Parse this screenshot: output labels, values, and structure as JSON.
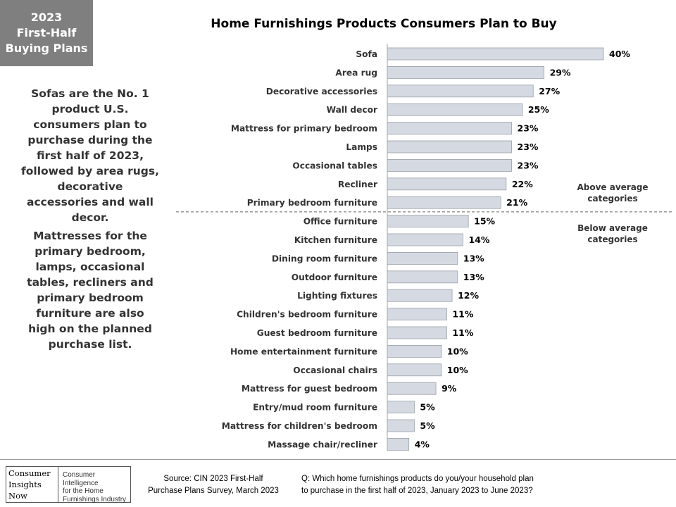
{
  "badge": {
    "line1": "2023",
    "line2": "First-Half",
    "line3": "Buying Plans"
  },
  "sidebar": {
    "para1": "Sofas are the No. 1 product U.S. consumers plan to purchase during the first half of 2023, followed by area rugs, decorative accessories and wall decor.",
    "para2": "Mattresses for the primary bedroom, lamps, occasional tables, recliners and primary bedroom furniture are also high on the planned purchase list."
  },
  "zones": {
    "above": "Above average categories",
    "below": "Below average categories"
  },
  "chart_data": {
    "type": "bar",
    "orientation": "horizontal",
    "title": "Home Furnishings Products Consumers Plan to Buy",
    "xlabel": "",
    "ylabel": "",
    "xlim": [
      0,
      40
    ],
    "grid": false,
    "value_suffix": "%",
    "bar_color": "#d5dae2",
    "bar_border": "#9aa0a8",
    "divider_after_index": 8,
    "categories": [
      "Sofa",
      "Area rug",
      "Decorative accessories",
      "Wall decor",
      "Mattress for primary bedroom",
      "Lamps",
      "Occasional tables",
      "Recliner",
      "Primary bedroom furniture",
      "Office furniture",
      "Kitchen furniture",
      "Dining room furniture",
      "Outdoor furniture",
      "Lighting fixtures",
      "Children's bedroom furniture",
      "Guest bedroom furniture",
      "Home entertainment furniture",
      "Occasional chairs",
      "Mattress for guest bedroom",
      "Entry/mud room furniture",
      "Mattress for children's bedroom",
      "Massage chair/recliner"
    ],
    "values": [
      40,
      29,
      27,
      25,
      23,
      23,
      23,
      22,
      21,
      15,
      14,
      13,
      13,
      12,
      11,
      11,
      10,
      10,
      9,
      5,
      5,
      4
    ]
  },
  "footer": {
    "logo_words": [
      "Consumer",
      "Insights",
      "Now"
    ],
    "logo_tagline": [
      "Consumer Intelligence",
      "for the Home",
      "Furnishings Industry"
    ],
    "source_line1": "Source:  CIN 2023 First-Half",
    "source_line2": "Purchase Plans Survey, March 2023",
    "question_line1": "Q: Which home furnishings products do you/your household plan",
    "question_line2": "to purchase in the first half of 2023, January 2023 to June 2023?"
  }
}
